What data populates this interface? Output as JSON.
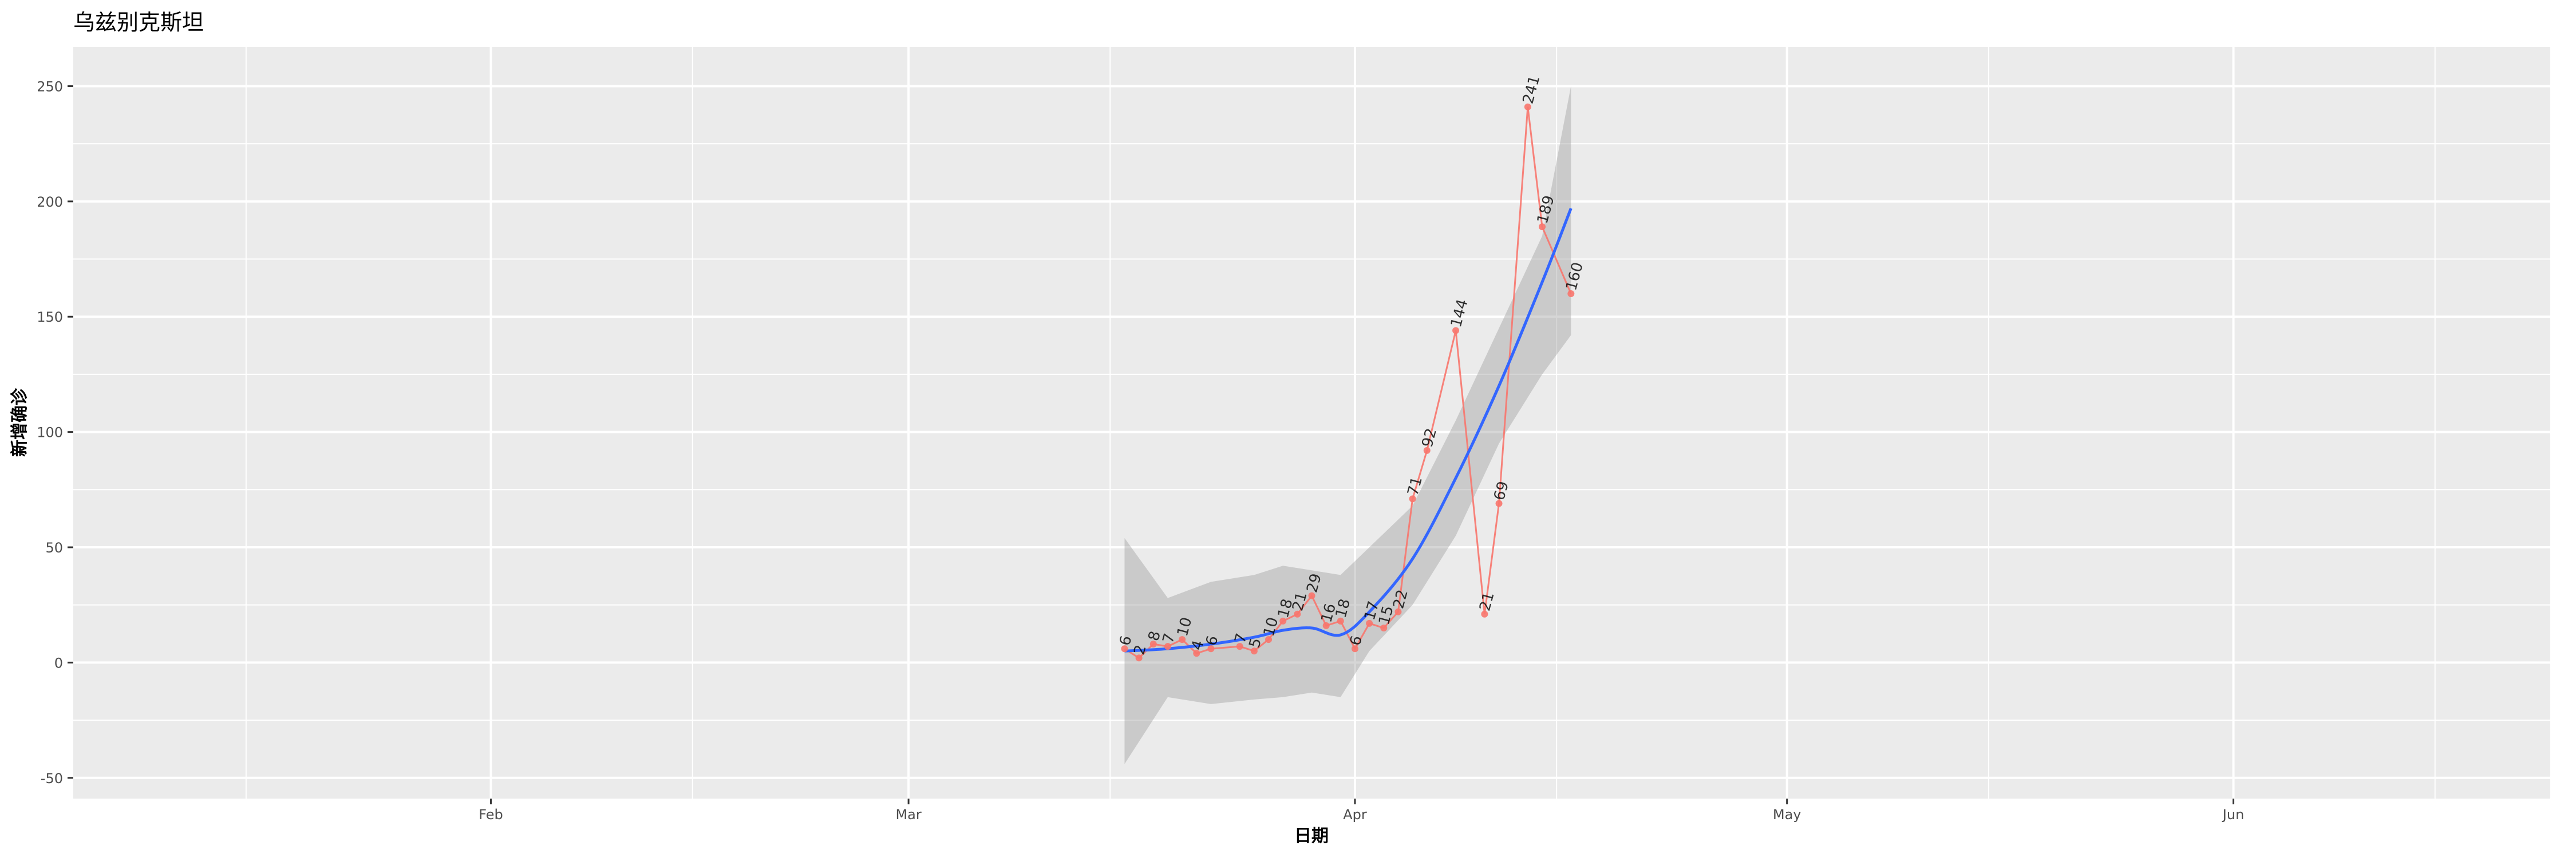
{
  "chart_data": {
    "type": "line",
    "title": "乌兹别克斯坦",
    "xlabel": "日期",
    "ylabel": "新增确诊",
    "xlim": [
      "2020-01-03",
      "2020-06-23"
    ],
    "ylim": [
      -59,
      267
    ],
    "x_ticks": [
      {
        "date": "2020-02-01",
        "label": "Feb"
      },
      {
        "date": "2020-03-01",
        "label": "Mar"
      },
      {
        "date": "2020-04-01",
        "label": "Apr"
      },
      {
        "date": "2020-05-01",
        "label": "May"
      },
      {
        "date": "2020-06-01",
        "label": "Jun"
      }
    ],
    "x_minor": [
      "2020-01-15",
      "2020-02-15",
      "2020-03-15",
      "2020-04-15",
      "2020-05-15",
      "2020-06-15"
    ],
    "y_ticks": [
      -50,
      0,
      50,
      100,
      150,
      200,
      250
    ],
    "grid": true,
    "colors": {
      "points": "#F8766D",
      "smooth": "#3366FF",
      "ribbon": "#C8C8C8",
      "panel": "#EBEBEB"
    },
    "series": [
      {
        "x": [
          "2020-03-16",
          "2020-03-17",
          "2020-03-18",
          "2020-03-19",
          "2020-03-20",
          "2020-03-21",
          "2020-03-22",
          "2020-03-24",
          "2020-03-25",
          "2020-03-26",
          "2020-03-27",
          "2020-03-28",
          "2020-03-29",
          "2020-03-30",
          "2020-03-31",
          "2020-04-01",
          "2020-04-02",
          "2020-04-03",
          "2020-04-04",
          "2020-04-05",
          "2020-04-06",
          "2020-04-08",
          "2020-04-10",
          "2020-04-11",
          "2020-04-13",
          "2020-04-14",
          "2020-04-16"
        ],
        "values": [
          6,
          2,
          8,
          7,
          10,
          4,
          6,
          7,
          5,
          10,
          18,
          21,
          29,
          16,
          18,
          6,
          17,
          15,
          22,
          71,
          92,
          144,
          21,
          69,
          241,
          189,
          160
        ]
      }
    ],
    "smooth": {
      "x": [
        "2020-03-16",
        "2020-03-19",
        "2020-03-22",
        "2020-03-25",
        "2020-03-27",
        "2020-03-29",
        "2020-03-31",
        "2020-04-02",
        "2020-04-05",
        "2020-04-08",
        "2020-04-11",
        "2020-04-14",
        "2020-04-16"
      ],
      "fit": [
        5,
        6,
        8,
        11,
        14,
        15,
        12,
        22,
        45,
        80,
        120,
        165,
        197
      ],
      "lower": [
        -44,
        -15,
        -18,
        -16,
        -15,
        -13,
        -15,
        5,
        25,
        55,
        95,
        125,
        142
      ],
      "upper": [
        54,
        28,
        35,
        38,
        42,
        40,
        38,
        50,
        68,
        105,
        145,
        185,
        250
      ]
    }
  }
}
